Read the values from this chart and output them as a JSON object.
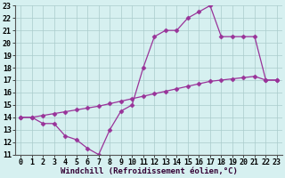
{
  "line1_x": [
    0,
    1,
    2,
    3,
    4,
    5,
    6,
    7,
    8,
    9,
    10,
    11,
    12,
    13,
    14,
    15,
    16,
    17,
    18,
    19,
    20,
    21,
    22,
    23
  ],
  "line1_y": [
    14,
    14,
    13.5,
    13.5,
    12.5,
    12.2,
    11.5,
    11,
    13,
    14.5,
    15,
    18,
    20.5,
    21,
    21,
    22,
    22.5,
    23,
    20.5,
    20.5,
    20.5,
    20.5,
    17,
    17
  ],
  "line2_x": [
    0,
    1,
    2,
    3,
    4,
    5,
    6,
    7,
    8,
    9,
    10,
    11,
    12,
    13,
    14,
    15,
    16,
    17,
    18,
    19,
    20,
    21,
    22,
    23
  ],
  "line2_y": [
    14,
    14,
    14.15,
    14.3,
    14.45,
    14.6,
    14.75,
    14.9,
    15.1,
    15.3,
    15.5,
    15.7,
    15.9,
    16.1,
    16.3,
    16.5,
    16.7,
    16.9,
    17.0,
    17.1,
    17.2,
    17.3,
    17.0,
    17.0
  ],
  "line_color": "#993399",
  "bg_color": "#d6f0f0",
  "grid_color": "#aacccc",
  "xlabel": "Windchill (Refroidissement éolien,°C)",
  "xlim": [
    0,
    23
  ],
  "ylim": [
    11,
    23
  ],
  "xticks": [
    0,
    1,
    2,
    3,
    4,
    5,
    6,
    7,
    8,
    9,
    10,
    11,
    12,
    13,
    14,
    15,
    16,
    17,
    18,
    19,
    20,
    21,
    22,
    23
  ],
  "yticks": [
    11,
    12,
    13,
    14,
    15,
    16,
    17,
    18,
    19,
    20,
    21,
    22,
    23
  ],
  "marker": "D",
  "markersize": 2.5,
  "linewidth": 0.9,
  "xlabel_fontsize": 6.5,
  "tick_fontsize": 6.0
}
